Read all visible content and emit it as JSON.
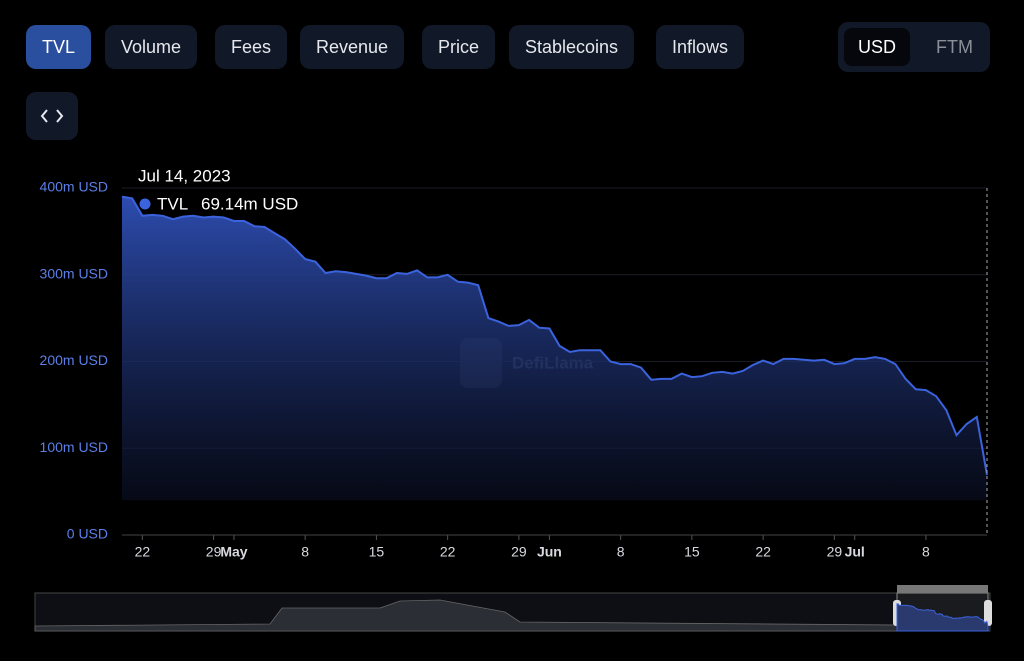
{
  "tabs": [
    "TVL",
    "Volume",
    "Fees",
    "Revenue",
    "Price",
    "Stablecoins",
    "Inflows"
  ],
  "currency": [
    "USD",
    "FTM"
  ],
  "watermark": "DefiLlama",
  "tooltip": {
    "date": "Jul 14, 2023",
    "name": "TVL",
    "value_label": "69.14m USD"
  },
  "chart_data": {
    "type": "area",
    "color": "#3b63de",
    "grid": true,
    "x": [
      "2023-04-20",
      "2023-04-21",
      "2023-04-22",
      "2023-04-23",
      "2023-04-24",
      "2023-04-25",
      "2023-04-26",
      "2023-04-27",
      "2023-04-28",
      "2023-04-29",
      "2023-04-30",
      "2023-05-01",
      "2023-05-02",
      "2023-05-03",
      "2023-05-04",
      "2023-05-05",
      "2023-05-06",
      "2023-05-07",
      "2023-05-08",
      "2023-05-09",
      "2023-05-10",
      "2023-05-11",
      "2023-05-12",
      "2023-05-13",
      "2023-05-14",
      "2023-05-15",
      "2023-05-16",
      "2023-05-17",
      "2023-05-18",
      "2023-05-19",
      "2023-05-20",
      "2023-05-21",
      "2023-05-22",
      "2023-05-23",
      "2023-05-24",
      "2023-05-25",
      "2023-05-26",
      "2023-05-27",
      "2023-05-28",
      "2023-05-29",
      "2023-05-30",
      "2023-05-31",
      "2023-06-01",
      "2023-06-02",
      "2023-06-03",
      "2023-06-04",
      "2023-06-05",
      "2023-06-06",
      "2023-06-07",
      "2023-06-08",
      "2023-06-09",
      "2023-06-10",
      "2023-06-11",
      "2023-06-12",
      "2023-06-13",
      "2023-06-14",
      "2023-06-15",
      "2023-06-16",
      "2023-06-17",
      "2023-06-18",
      "2023-06-19",
      "2023-06-20",
      "2023-06-21",
      "2023-06-22",
      "2023-06-23",
      "2023-06-24",
      "2023-06-25",
      "2023-06-26",
      "2023-06-27",
      "2023-06-28",
      "2023-06-29",
      "2023-06-30",
      "2023-07-01",
      "2023-07-02",
      "2023-07-03",
      "2023-07-04",
      "2023-07-05",
      "2023-07-06",
      "2023-07-07",
      "2023-07-08",
      "2023-07-09",
      "2023-07-10",
      "2023-07-11",
      "2023-07-12",
      "2023-07-13",
      "2023-07-14"
    ],
    "series": [
      {
        "name": "TVL",
        "color": "#3b63de",
        "values": [
          390,
          388,
          368,
          369,
          368,
          364,
          367,
          368,
          366,
          367,
          366,
          362,
          362,
          356,
          355,
          348,
          341,
          330,
          318,
          315,
          302,
          304,
          303,
          301,
          299,
          296,
          296,
          302,
          301,
          305,
          297,
          297,
          300,
          292,
          291,
          288,
          250,
          246,
          241,
          242,
          248,
          239,
          238,
          218,
          211,
          213,
          213,
          213,
          200,
          197,
          197,
          193,
          179,
          180,
          180,
          186,
          182,
          183,
          187,
          188,
          186,
          189,
          196,
          201,
          197,
          203,
          203,
          202,
          201,
          202,
          197,
          198,
          203,
          203,
          205,
          203,
          197,
          180,
          168,
          167,
          160,
          144,
          115,
          128,
          136,
          69.14
        ]
      }
    ],
    "xlim": [
      "2023-04-20",
      "2023-07-14"
    ],
    "xticks": [
      {
        "value": "2023-04-22",
        "label": "22"
      },
      {
        "value": "2023-04-29",
        "label": "29"
      },
      {
        "value": "2023-05-01",
        "label": "May"
      },
      {
        "value": "2023-05-08",
        "label": "8"
      },
      {
        "value": "2023-05-15",
        "label": "15"
      },
      {
        "value": "2023-05-22",
        "label": "22"
      },
      {
        "value": "2023-05-29",
        "label": "29"
      },
      {
        "value": "2023-06-01",
        "label": "Jun"
      },
      {
        "value": "2023-06-08",
        "label": "8"
      },
      {
        "value": "2023-06-15",
        "label": "15"
      },
      {
        "value": "2023-06-22",
        "label": "22"
      },
      {
        "value": "2023-06-29",
        "label": "29"
      },
      {
        "value": "2023-07-01",
        "label": "Jul"
      },
      {
        "value": "2023-07-08",
        "label": "8"
      }
    ],
    "ylim": [
      0,
      400
    ],
    "yticks": [
      {
        "value": 0,
        "label": "0 USD"
      },
      {
        "value": 100,
        "label": "100m USD"
      },
      {
        "value": 200,
        "label": "200m USD"
      },
      {
        "value": 300,
        "label": "300m USD"
      },
      {
        "value": 400,
        "label": "400m USD"
      }
    ]
  }
}
